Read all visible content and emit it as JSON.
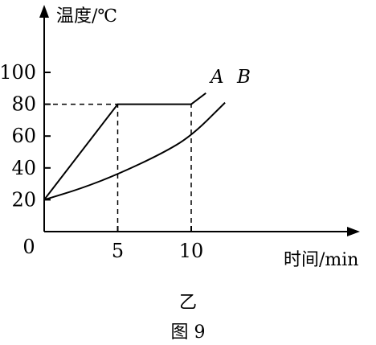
{
  "chart_data": {
    "type": "line",
    "ylabel": "温度/℃",
    "xlabel": "时间/min",
    "origin_label": "0",
    "xticks": [
      5,
      10
    ],
    "yticks": [
      20,
      40,
      60,
      80,
      100
    ],
    "xlim": [
      0,
      14
    ],
    "ylim": [
      0,
      115
    ],
    "grid": false,
    "series": [
      {
        "name": "A",
        "points": [
          [
            0,
            20
          ],
          [
            5,
            80
          ],
          [
            10,
            80
          ],
          [
            11,
            87
          ]
        ]
      },
      {
        "name": "B",
        "points": [
          [
            0,
            20
          ],
          [
            2.5,
            27
          ],
          [
            5,
            36
          ],
          [
            8,
            49
          ],
          [
            10,
            60
          ],
          [
            12.3,
            81
          ]
        ]
      }
    ],
    "reference_lines": [
      {
        "from": [
          0,
          80
        ],
        "to": [
          5,
          80
        ]
      },
      {
        "from": [
          5,
          0
        ],
        "to": [
          5,
          80
        ]
      },
      {
        "from": [
          10,
          0
        ],
        "to": [
          10,
          80
        ]
      }
    ],
    "subtitle": "乙",
    "figure_label": "图 9"
  }
}
